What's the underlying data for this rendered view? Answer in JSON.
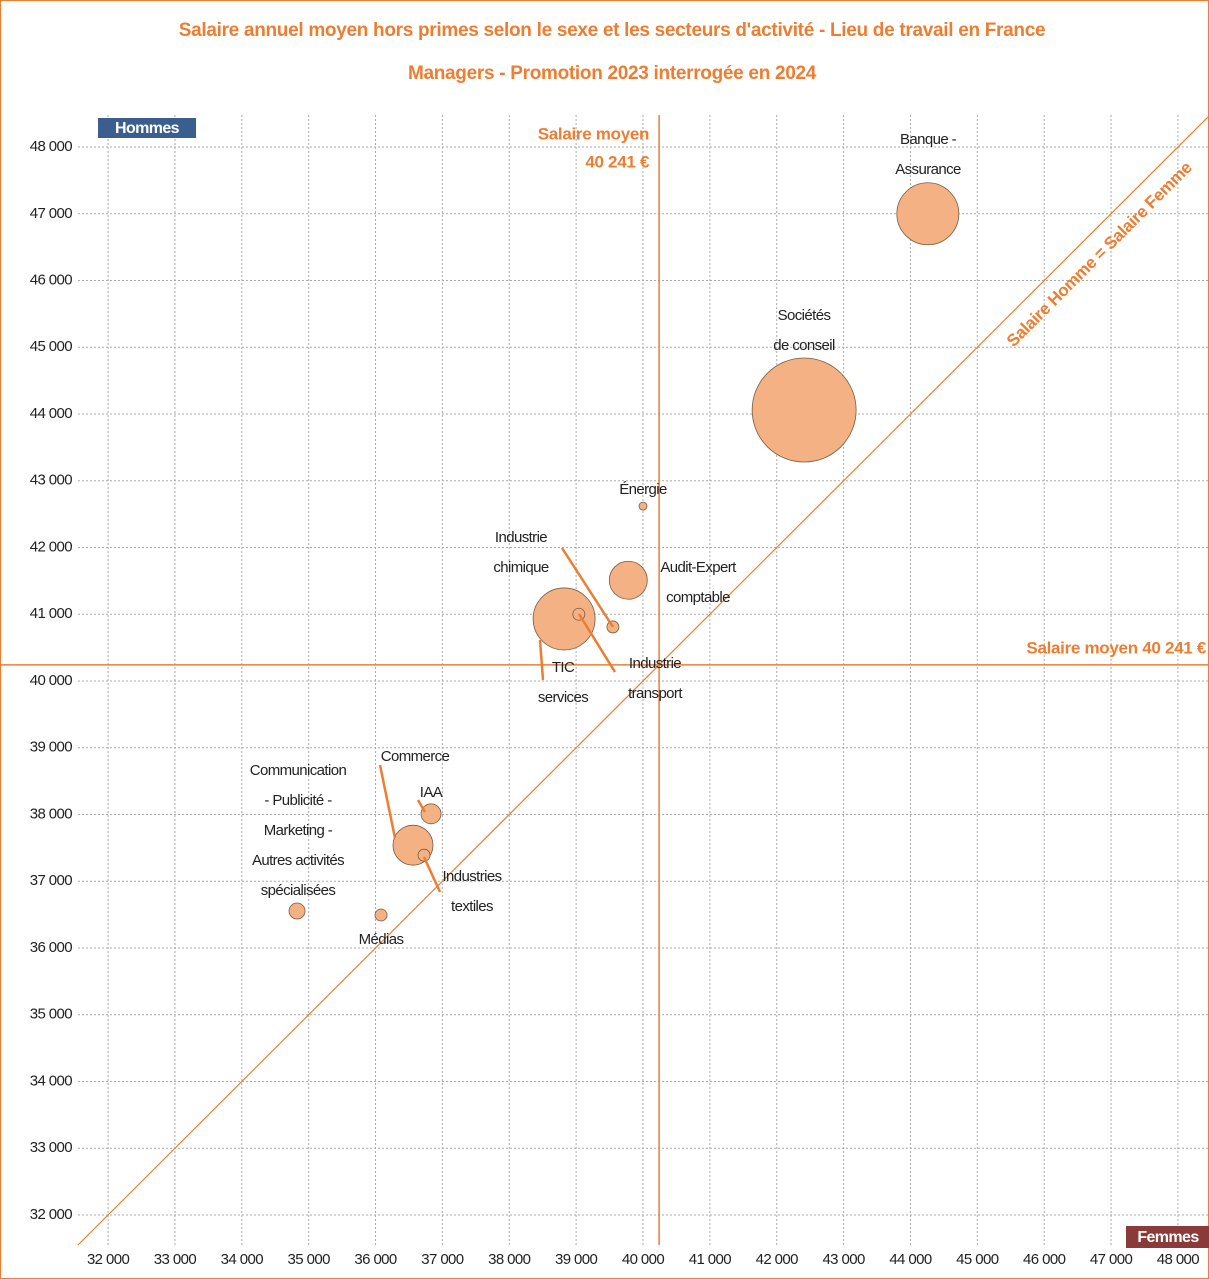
{
  "chart_data": {
    "type": "bubble",
    "title": [
      "Salaire annuel moyen hors primes selon le sexe et les secteurs d'activité - Lieu de travail en France",
      "Managers - Promotion 2023 interrogée en 2024"
    ],
    "y_corner_label": "Hommes",
    "x_corner_label": "Femmes",
    "labels": [
      [
        "Banque -",
        "Assurance"
      ],
      [
        "Sociétés",
        "de conseil"
      ],
      [
        "Énergie"
      ],
      [
        "Audit-Expert",
        "comptable"
      ],
      [
        "Industrie",
        "chimique"
      ],
      [
        "TIC",
        "services"
      ],
      [
        "Industrie",
        "transport"
      ],
      [
        "Commerce"
      ],
      [
        "IAA"
      ],
      [
        "Industries",
        "textiles"
      ],
      [
        "Communication",
        "- Publicité -",
        "Marketing -",
        "Autres activités",
        "spécialisées"
      ],
      [
        "Médias"
      ]
    ],
    "x": [
      44260,
      42410,
      40000,
      39780,
      39550,
      38820,
      39040,
      36560,
      36830,
      36725,
      34826,
      36082
    ],
    "y": [
      47000,
      44060,
      42620,
      41510,
      40810,
      40930,
      41000,
      37540,
      38010,
      37390,
      36554,
      36494
    ],
    "sizes": [
      961,
      2704,
      16,
      361,
      36,
      961,
      36,
      400,
      100,
      36,
      64,
      36
    ],
    "color": "#f4b183",
    "line_color": "#ed7d31",
    "mean": {
      "value": 40241,
      "x_label": [
        "Salaire moyen",
        "40 241 €"
      ],
      "y_label": "Salaire moyen 40 241 €"
    },
    "diagonal_label": "Salaire Homme = Salaire Femme",
    "xlim": [
      31550,
      48450
    ],
    "ylim": [
      31550,
      48480
    ],
    "xticks": [
      {
        "value": 32000,
        "label": "32 000"
      },
      {
        "value": 33000,
        "label": "33 000"
      },
      {
        "value": 34000,
        "label": "34 000"
      },
      {
        "value": 35000,
        "label": "35 000"
      },
      {
        "value": 36000,
        "label": "36 000"
      },
      {
        "value": 37000,
        "label": "37 000"
      },
      {
        "value": 38000,
        "label": "38 000"
      },
      {
        "value": 39000,
        "label": "39 000"
      },
      {
        "value": 40000,
        "label": "40 000"
      },
      {
        "value": 41000,
        "label": "41 000"
      },
      {
        "value": 42000,
        "label": "42 000"
      },
      {
        "value": 43000,
        "label": "43 000"
      },
      {
        "value": 44000,
        "label": "44 000"
      },
      {
        "value": 45000,
        "label": "45 000"
      },
      {
        "value": 46000,
        "label": "46 000"
      },
      {
        "value": 47000,
        "label": "47 000"
      },
      {
        "value": 48000,
        "label": "48 000"
      }
    ],
    "yticks": [
      {
        "value": 32000,
        "label": "32 000"
      },
      {
        "value": 33000,
        "label": "33 000"
      },
      {
        "value": 34000,
        "label": "34 000"
      },
      {
        "value": 35000,
        "label": "35 000"
      },
      {
        "value": 36000,
        "label": "36 000"
      },
      {
        "value": 37000,
        "label": "37 000"
      },
      {
        "value": 38000,
        "label": "38 000"
      },
      {
        "value": 39000,
        "label": "39 000"
      },
      {
        "value": 40000,
        "label": "40 000"
      },
      {
        "value": 41000,
        "label": "41 000"
      },
      {
        "value": 42000,
        "label": "42 000"
      },
      {
        "value": 43000,
        "label": "43 000"
      },
      {
        "value": 44000,
        "label": "44 000"
      },
      {
        "value": 45000,
        "label": "45 000"
      },
      {
        "value": 46000,
        "label": "46 000"
      },
      {
        "value": 47000,
        "label": "47 000"
      },
      {
        "value": 48000,
        "label": "48 000"
      }
    ],
    "grid": true
  }
}
